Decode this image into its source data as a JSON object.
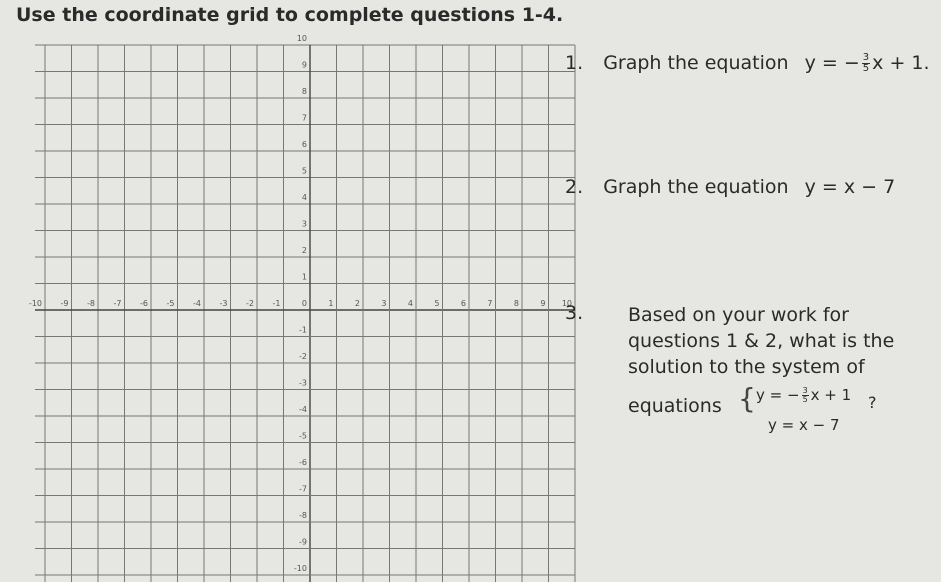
{
  "header": {
    "title": "Use the coordinate grid to complete questions 1-4."
  },
  "grid": {
    "x_labels": [
      -10,
      -9,
      -8,
      -7,
      -6,
      -5,
      -4,
      -3,
      -2,
      -1,
      0,
      1,
      2,
      3,
      4,
      5,
      6,
      7,
      8,
      9,
      10
    ],
    "y_labels": [
      10,
      9,
      8,
      7,
      6,
      5,
      4,
      3,
      2,
      1,
      -1,
      -2,
      -3,
      -4,
      -5,
      -6,
      -7,
      -8,
      -9,
      -10
    ]
  },
  "questions": [
    {
      "number": "1.",
      "text": "Graph the equation",
      "equation": {
        "lhs": "y = −",
        "num": "3",
        "den": "5",
        "rhs": "x + 1."
      }
    },
    {
      "number": "2.",
      "text": "Graph the equation",
      "equation": {
        "lhs": "y = x − 7"
      }
    },
    {
      "number": "3.",
      "text": "Based on your work for questions 1 & 2, what is the solution to the system of",
      "lead": "equations",
      "system": [
        {
          "lhs": "y = −",
          "num": "3",
          "den": "5",
          "rhs": "x + 1"
        },
        {
          "lhs": "y = x − 7"
        }
      ],
      "end": "?"
    }
  ]
}
